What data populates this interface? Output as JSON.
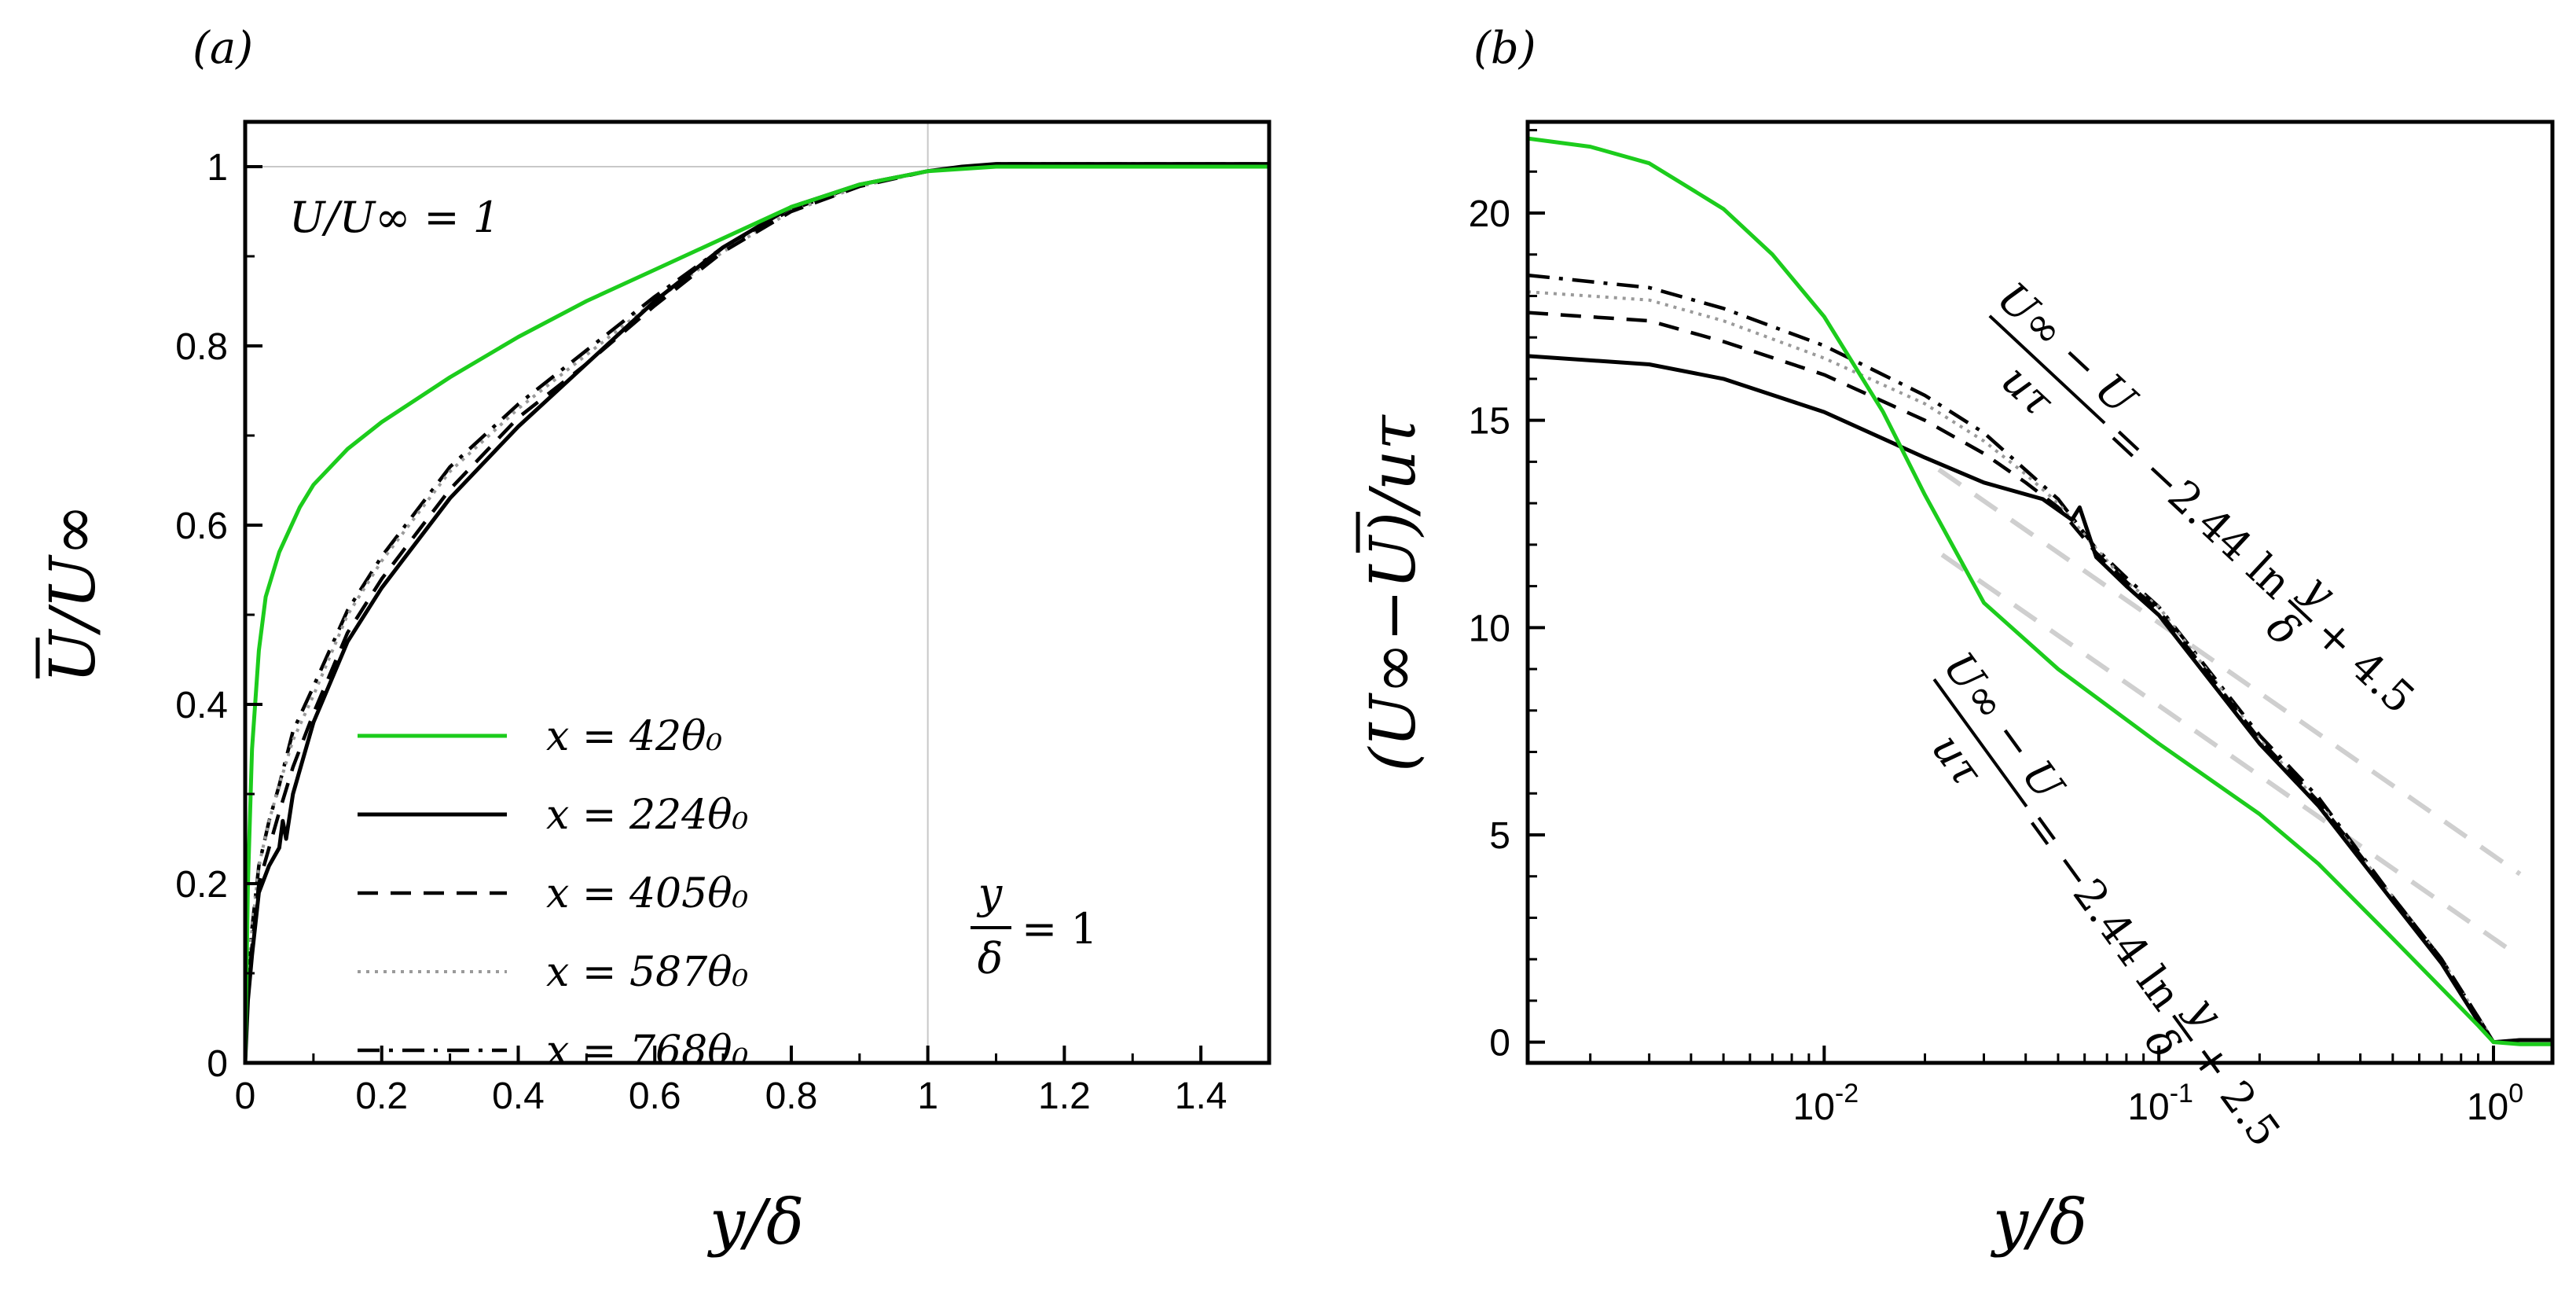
{
  "chart_data": [
    {
      "panel_label": "(a)",
      "type": "line",
      "xlabel": "y/δ",
      "ylabel": "U/U∞",
      "xlim": [
        0,
        1.5
      ],
      "ylim": [
        0,
        1.05
      ],
      "xticks": [
        "0",
        "0.2",
        "0.4",
        "0.6",
        "0.8",
        "1",
        "1.2",
        "1.4"
      ],
      "yticks": [
        "0",
        "0.2",
        "0.4",
        "0.6",
        "0.8",
        "1"
      ],
      "annotations": {
        "top": "U/U∞ = 1",
        "right_num": "y",
        "right_den": "δ",
        "right_rhs": "= 1"
      },
      "reference_lines": [
        {
          "axis": "y",
          "value": 1
        },
        {
          "axis": "x",
          "value": 1
        }
      ],
      "series": [
        {
          "name": "x =   42θ₀",
          "color": "#1ccc1c",
          "dash": "solid",
          "x": [
            0,
            0.004,
            0.01,
            0.02,
            0.03,
            0.05,
            0.08,
            0.1,
            0.15,
            0.2,
            0.3,
            0.4,
            0.5,
            0.6,
            0.7,
            0.8,
            0.9,
            1.0,
            1.1,
            1.2,
            1.3,
            1.4,
            1.5
          ],
          "y": [
            0,
            0.2,
            0.35,
            0.46,
            0.52,
            0.57,
            0.62,
            0.645,
            0.685,
            0.715,
            0.765,
            0.81,
            0.85,
            0.885,
            0.92,
            0.955,
            0.98,
            0.995,
            1.0,
            1.0,
            1.0,
            1.0,
            1.0
          ]
        },
        {
          "name": "x = 224θ₀",
          "color": "#000000",
          "dash": "solid",
          "x": [
            0,
            0.004,
            0.01,
            0.02,
            0.035,
            0.05,
            0.055,
            0.06,
            0.07,
            0.1,
            0.15,
            0.2,
            0.3,
            0.4,
            0.5,
            0.6,
            0.7,
            0.8,
            0.9,
            1.0,
            1.05,
            1.1,
            1.2,
            1.3,
            1.4,
            1.5
          ],
          "y": [
            0,
            0.07,
            0.12,
            0.19,
            0.22,
            0.24,
            0.27,
            0.25,
            0.3,
            0.38,
            0.47,
            0.53,
            0.63,
            0.71,
            0.78,
            0.85,
            0.91,
            0.955,
            0.98,
            0.995,
            1.0,
            1.003,
            1.003,
            1.003,
            1.003,
            1.003
          ]
        },
        {
          "name": "x = 405θ₀",
          "color": "#000000",
          "dash": "dashed",
          "x": [
            0,
            0.004,
            0.01,
            0.02,
            0.035,
            0.05,
            0.07,
            0.1,
            0.15,
            0.2,
            0.3,
            0.4,
            0.5,
            0.6,
            0.7,
            0.8,
            0.9,
            1.0,
            1.1,
            1.2,
            1.3,
            1.4,
            1.5
          ],
          "y": [
            0,
            0.08,
            0.13,
            0.2,
            0.24,
            0.28,
            0.33,
            0.39,
            0.48,
            0.54,
            0.64,
            0.72,
            0.78,
            0.845,
            0.905,
            0.95,
            0.978,
            0.995,
            1.003,
            1.003,
            1.003,
            1.003,
            1.003
          ]
        },
        {
          "name": "x = 587θ₀",
          "color": "#9a9a9a",
          "dash": "dotted",
          "x": [
            0,
            0.004,
            0.01,
            0.02,
            0.035,
            0.05,
            0.07,
            0.1,
            0.15,
            0.2,
            0.3,
            0.4,
            0.5,
            0.6,
            0.7,
            0.8,
            0.9,
            1.0,
            1.1,
            1.2,
            1.3,
            1.4,
            1.5
          ],
          "y": [
            0,
            0.09,
            0.15,
            0.22,
            0.27,
            0.31,
            0.36,
            0.41,
            0.5,
            0.56,
            0.66,
            0.73,
            0.79,
            0.85,
            0.905,
            0.95,
            0.978,
            0.995,
            1.003,
            1.003,
            1.003,
            1.003,
            1.003
          ]
        },
        {
          "name": "x = 768θ₀",
          "color": "#000000",
          "dash": "dashdot",
          "x": [
            0,
            0.004,
            0.01,
            0.02,
            0.035,
            0.05,
            0.07,
            0.1,
            0.15,
            0.2,
            0.3,
            0.4,
            0.5,
            0.6,
            0.7,
            0.8,
            0.9,
            1.0,
            1.1,
            1.2,
            1.3,
            1.4,
            1.5
          ],
          "y": [
            0,
            0.09,
            0.15,
            0.22,
            0.27,
            0.31,
            0.37,
            0.42,
            0.505,
            0.565,
            0.665,
            0.735,
            0.795,
            0.855,
            0.91,
            0.952,
            0.98,
            0.995,
            1.003,
            1.003,
            1.003,
            1.003,
            1.003
          ]
        }
      ]
    },
    {
      "panel_label": "(b)",
      "type": "line",
      "xscale": "log",
      "xlabel": "y/δ",
      "ylabel": "(U∞−U)/uτ",
      "xlim": [
        0.0013,
        1.5
      ],
      "ylim": [
        -0.5,
        22.2
      ],
      "yticks": [
        "0",
        "5",
        "10",
        "15",
        "20"
      ],
      "xticks": [
        {
          "base": "10",
          "exp": "-2",
          "value": 0.01
        },
        {
          "base": "10",
          "exp": "-1",
          "value": 0.1
        },
        {
          "base": "10",
          "exp": "0",
          "value": 1
        }
      ],
      "annotations": {
        "upper": {
          "num": "U∞ − U",
          "den": "uτ",
          "rhs": "= −2.44 ln",
          "frac_num": "y",
          "frac_den": "δ",
          "tail": "+ 4.5"
        },
        "lower": {
          "num": "U∞ − U",
          "den": "uτ",
          "rhs": "= −2.44 ln",
          "frac_num": "y",
          "frac_den": "δ",
          "tail": "+ 2.5"
        }
      },
      "reference_lines": [
        {
          "name": "log law + 4.5",
          "slope": -2.44,
          "intercept": 4.5,
          "x_range": [
            0.022,
            1.2
          ]
        },
        {
          "name": "log law + 2.5",
          "slope": -2.44,
          "intercept": 2.5,
          "x_range": [
            0.0225,
            1.2
          ]
        }
      ],
      "series": [
        {
          "name": "x =   42θ₀",
          "color": "#1ccc1c",
          "dash": "solid",
          "x": [
            0.0013,
            0.002,
            0.003,
            0.005,
            0.007,
            0.01,
            0.015,
            0.02,
            0.03,
            0.05,
            0.1,
            0.2,
            0.3,
            0.5,
            0.7,
            0.9,
            1.0,
            1.2,
            1.5
          ],
          "y": [
            21.8,
            21.6,
            21.2,
            20.1,
            19.0,
            17.5,
            15.2,
            13.2,
            10.6,
            9.0,
            7.2,
            5.5,
            4.3,
            2.5,
            1.3,
            0.4,
            0.0,
            -0.05,
            -0.05
          ]
        },
        {
          "name": "x = 224θ₀",
          "color": "#000000",
          "dash": "solid",
          "x": [
            0.0013,
            0.003,
            0.005,
            0.01,
            0.02,
            0.03,
            0.045,
            0.055,
            0.058,
            0.065,
            0.08,
            0.1,
            0.2,
            0.3,
            0.5,
            0.7,
            0.9,
            1.0,
            1.2,
            1.5
          ],
          "y": [
            16.55,
            16.35,
            16.0,
            15.2,
            14.1,
            13.5,
            13.1,
            12.6,
            12.9,
            11.7,
            11.0,
            10.3,
            7.2,
            5.7,
            3.4,
            1.9,
            0.5,
            0.0,
            0.05,
            0.05
          ]
        },
        {
          "name": "x = 405θ₀",
          "color": "#000000",
          "dash": "dashed",
          "x": [
            0.0013,
            0.003,
            0.005,
            0.01,
            0.02,
            0.03,
            0.04,
            0.05,
            0.065,
            0.08,
            0.1,
            0.2,
            0.3,
            0.5,
            0.7,
            0.9,
            1.0,
            1.2,
            1.5
          ],
          "y": [
            17.6,
            17.4,
            16.9,
            16.1,
            15.0,
            14.2,
            13.5,
            12.9,
            11.8,
            11.1,
            10.4,
            7.3,
            5.8,
            3.5,
            2.0,
            0.6,
            0.0,
            0.05,
            0.05
          ]
        },
        {
          "name": "x = 587θ₀",
          "color": "#9a9a9a",
          "dash": "dotted",
          "x": [
            0.0013,
            0.003,
            0.005,
            0.01,
            0.02,
            0.03,
            0.04,
            0.05,
            0.065,
            0.08,
            0.1,
            0.2,
            0.3,
            0.5,
            0.7,
            0.9,
            1.0,
            1.2,
            1.5
          ],
          "y": [
            18.1,
            17.9,
            17.4,
            16.5,
            15.4,
            14.5,
            13.7,
            13.0,
            11.9,
            11.1,
            10.5,
            7.3,
            5.8,
            3.5,
            2.0,
            0.6,
            0.0,
            0.05,
            0.05
          ]
        },
        {
          "name": "x = 768θ₀",
          "color": "#000000",
          "dash": "dashdot",
          "x": [
            0.0013,
            0.003,
            0.005,
            0.01,
            0.02,
            0.03,
            0.04,
            0.05,
            0.065,
            0.08,
            0.1,
            0.2,
            0.3,
            0.5,
            0.7,
            0.9,
            1.0,
            1.2,
            1.5
          ],
          "y": [
            18.5,
            18.2,
            17.7,
            16.8,
            15.6,
            14.7,
            13.8,
            13.1,
            11.9,
            11.2,
            10.5,
            7.4,
            5.9,
            3.5,
            2.0,
            0.6,
            0.0,
            0.05,
            0.05
          ]
        }
      ]
    }
  ]
}
